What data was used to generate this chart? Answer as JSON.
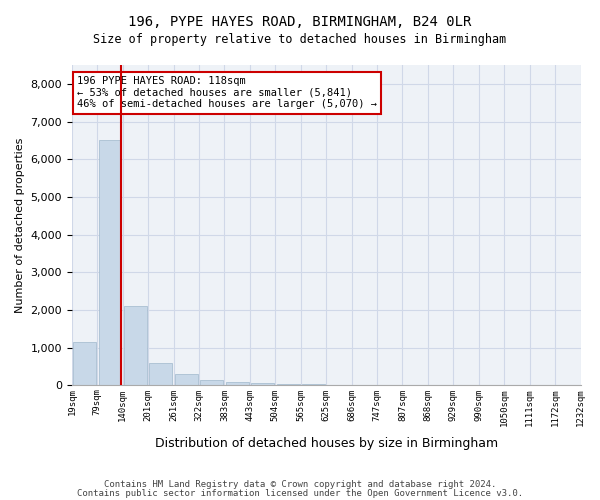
{
  "title_line1": "196, PYPE HAYES ROAD, BIRMINGHAM, B24 0LR",
  "title_line2": "Size of property relative to detached houses in Birmingham",
  "xlabel": "Distribution of detached houses by size in Birmingham",
  "ylabel": "Number of detached properties",
  "footnote1": "Contains HM Land Registry data © Crown copyright and database right 2024.",
  "footnote2": "Contains public sector information licensed under the Open Government Licence v3.0.",
  "annotation_line1": "196 PYPE HAYES ROAD: 118sqm",
  "annotation_line2": "← 53% of detached houses are smaller (5,841)",
  "annotation_line3": "46% of semi-detached houses are larger (5,070) →",
  "bar_color": "#c8d8e8",
  "bar_edge_color": "#a0b8cc",
  "grid_color": "#d0d8e8",
  "redline_color": "#cc0000",
  "annotation_box_color": "#ffffff",
  "annotation_box_edge": "#cc0000",
  "background_color": "#eef2f7",
  "tick_labels": [
    "19sqm",
    "79sqm",
    "140sqm",
    "201sqm",
    "261sqm",
    "322sqm",
    "383sqm",
    "443sqm",
    "504sqm",
    "565sqm",
    "625sqm",
    "686sqm",
    "747sqm",
    "807sqm",
    "868sqm",
    "929sqm",
    "990sqm",
    "1050sqm",
    "1111sqm",
    "1172sqm",
    "1232sqm"
  ],
  "values": [
    1150,
    6500,
    2100,
    600,
    300,
    150,
    100,
    60,
    50,
    50,
    0,
    0,
    0,
    0,
    0,
    0,
    0,
    0,
    0,
    0
  ],
  "ylim": [
    0,
    8500
  ],
  "yticks": [
    0,
    1000,
    2000,
    3000,
    4000,
    5000,
    6000,
    7000,
    8000
  ],
  "redline_x": 1.45,
  "property_size": "118sqm"
}
